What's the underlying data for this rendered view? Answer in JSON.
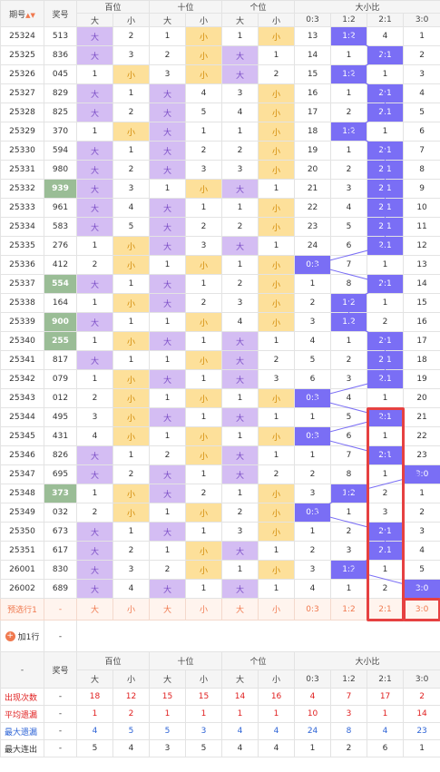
{
  "header": {
    "qh": "期号",
    "num": "奖号",
    "groups": [
      "百位",
      "十位",
      "个位",
      "大小比"
    ],
    "sub": [
      "大",
      "小",
      "大",
      "小",
      "大",
      "小",
      "0:3",
      "1:2",
      "2:1",
      "3:0"
    ]
  },
  "rows": [
    {
      "qh": "25324",
      "num": "513",
      "hit": false,
      "h": "d",
      "hv": "2",
      "t": "x",
      "tv": "1",
      "g": "x",
      "gv": "1",
      "r": 1,
      "rv": [
        "13",
        "",
        "4",
        "1"
      ]
    },
    {
      "qh": "25325",
      "num": "836",
      "hit": false,
      "h": "d",
      "hv": "3",
      "t": "x",
      "tv": "2",
      "g": "d",
      "gv": "1",
      "r": 2,
      "rv": [
        "14",
        "1",
        "",
        "2"
      ]
    },
    {
      "qh": "25326",
      "num": "045",
      "hit": false,
      "h": "x",
      "hv": "1",
      "t": "x",
      "tv": "3",
      "g": "d",
      "gv": "2",
      "r": 1,
      "rv": [
        "15",
        "",
        "1",
        "3"
      ]
    },
    {
      "qh": "25327",
      "num": "829",
      "hit": false,
      "h": "d",
      "hv": "1",
      "t": "d",
      "tv": "4",
      "g": "x",
      "gv": "3",
      "r": 2,
      "rv": [
        "16",
        "1",
        "",
        "4"
      ]
    },
    {
      "qh": "25328",
      "num": "825",
      "hit": false,
      "h": "d",
      "hv": "2",
      "t": "d",
      "tv": "5",
      "g": "x",
      "gv": "4",
      "r": 2,
      "rv": [
        "17",
        "2",
        "",
        "5"
      ]
    },
    {
      "qh": "25329",
      "num": "370",
      "hit": false,
      "h": "x",
      "hv": "1",
      "t": "d",
      "tv": "1",
      "g": "x",
      "gv": "1",
      "r": 1,
      "rv": [
        "18",
        "",
        "1",
        "6"
      ]
    },
    {
      "qh": "25330",
      "num": "594",
      "hit": false,
      "h": "d",
      "hv": "1",
      "t": "d",
      "tv": "2",
      "g": "x",
      "gv": "2",
      "r": 2,
      "rv": [
        "19",
        "1",
        "",
        "7"
      ]
    },
    {
      "qh": "25331",
      "num": "980",
      "hit": false,
      "h": "d",
      "hv": "2",
      "t": "d",
      "tv": "3",
      "g": "x",
      "gv": "3",
      "r": 2,
      "rv": [
        "20",
        "2",
        "",
        "8"
      ]
    },
    {
      "qh": "25332",
      "num": "939",
      "hit": true,
      "h": "d",
      "hv": "3",
      "t": "x",
      "tv": "1",
      "g": "d",
      "gv": "1",
      "r": 2,
      "rv": [
        "21",
        "3",
        "",
        "9"
      ]
    },
    {
      "qh": "25333",
      "num": "961",
      "hit": false,
      "h": "d",
      "hv": "4",
      "t": "d",
      "tv": "1",
      "g": "x",
      "gv": "1",
      "r": 2,
      "rv": [
        "22",
        "4",
        "",
        "10"
      ]
    },
    {
      "qh": "25334",
      "num": "583",
      "hit": false,
      "h": "d",
      "hv": "5",
      "t": "d",
      "tv": "2",
      "g": "x",
      "gv": "2",
      "r": 2,
      "rv": [
        "23",
        "5",
        "",
        "11"
      ]
    },
    {
      "qh": "25335",
      "num": "276",
      "hit": false,
      "h": "x",
      "hv": "1",
      "t": "d",
      "tv": "3",
      "g": "d",
      "gv": "1",
      "r": 2,
      "rv": [
        "24",
        "6",
        "",
        "12"
      ]
    },
    {
      "qh": "25336",
      "num": "412",
      "hit": false,
      "h": "x",
      "hv": "2",
      "t": "x",
      "tv": "1",
      "g": "x",
      "gv": "1",
      "r": 0,
      "rv": [
        "",
        "7",
        "1",
        "13"
      ]
    },
    {
      "qh": "25337",
      "num": "554",
      "hit": true,
      "h": "d",
      "hv": "1",
      "t": "d",
      "tv": "1",
      "g": "x",
      "gv": "2",
      "r": 2,
      "rv": [
        "1",
        "8",
        "",
        "14"
      ]
    },
    {
      "qh": "25338",
      "num": "164",
      "hit": false,
      "h": "x",
      "hv": "1",
      "t": "d",
      "tv": "2",
      "g": "x",
      "gv": "3",
      "r": 1,
      "rv": [
        "2",
        "",
        "1",
        "15"
      ]
    },
    {
      "qh": "25339",
      "num": "900",
      "hit": true,
      "h": "d",
      "hv": "1",
      "t": "x",
      "tv": "1",
      "g": "x",
      "gv": "4",
      "r": 1,
      "rv": [
        "3",
        "",
        "2",
        "16"
      ]
    },
    {
      "qh": "25340",
      "num": "255",
      "hit": true,
      "h": "x",
      "hv": "1",
      "t": "d",
      "tv": "1",
      "g": "d",
      "gv": "1",
      "r": 2,
      "rv": [
        "4",
        "1",
        "",
        "17"
      ]
    },
    {
      "qh": "25341",
      "num": "817",
      "hit": false,
      "h": "d",
      "hv": "1",
      "t": "x",
      "tv": "1",
      "g": "d",
      "gv": "2",
      "r": 2,
      "rv": [
        "5",
        "2",
        "",
        "18"
      ]
    },
    {
      "qh": "25342",
      "num": "079",
      "hit": false,
      "h": "x",
      "hv": "1",
      "t": "d",
      "tv": "1",
      "g": "d",
      "gv": "3",
      "r": 2,
      "rv": [
        "6",
        "3",
        "",
        "19"
      ]
    },
    {
      "qh": "25343",
      "num": "012",
      "hit": false,
      "h": "x",
      "hv": "2",
      "t": "x",
      "tv": "1",
      "g": "x",
      "gv": "1",
      "r": 0,
      "rv": [
        "",
        "4",
        "1",
        "20"
      ]
    },
    {
      "qh": "25344",
      "num": "495",
      "hit": false,
      "h": "x",
      "hv": "3",
      "t": "d",
      "tv": "1",
      "g": "d",
      "gv": "1",
      "r": 2,
      "rv": [
        "1",
        "5",
        "",
        "21"
      ]
    },
    {
      "qh": "25345",
      "num": "431",
      "hit": false,
      "h": "x",
      "hv": "4",
      "t": "x",
      "tv": "1",
      "g": "x",
      "gv": "1",
      "r": 0,
      "rv": [
        "",
        "6",
        "1",
        "22"
      ]
    },
    {
      "qh": "25346",
      "num": "826",
      "hit": false,
      "h": "d",
      "hv": "1",
      "t": "x",
      "tv": "2",
      "g": "d",
      "gv": "1",
      "r": 2,
      "rv": [
        "1",
        "7",
        "",
        "23"
      ]
    },
    {
      "qh": "25347",
      "num": "695",
      "hit": false,
      "h": "d",
      "hv": "2",
      "t": "d",
      "tv": "1",
      "g": "d",
      "gv": "2",
      "r": 3,
      "rv": [
        "2",
        "8",
        "1",
        ""
      ]
    },
    {
      "qh": "25348",
      "num": "373",
      "hit": true,
      "h": "x",
      "hv": "1",
      "t": "d",
      "tv": "2",
      "g": "x",
      "gv": "1",
      "r": 1,
      "rv": [
        "3",
        "",
        "2",
        "1"
      ]
    },
    {
      "qh": "25349",
      "num": "032",
      "hit": false,
      "h": "x",
      "hv": "2",
      "t": "x",
      "tv": "1",
      "g": "x",
      "gv": "2",
      "r": 0,
      "rv": [
        "",
        "1",
        "3",
        "2"
      ]
    },
    {
      "qh": "25350",
      "num": "673",
      "hit": false,
      "h": "d",
      "hv": "1",
      "t": "d",
      "tv": "1",
      "g": "x",
      "gv": "3",
      "r": 2,
      "rv": [
        "1",
        "2",
        "",
        "3"
      ]
    },
    {
      "qh": "25351",
      "num": "617",
      "hit": false,
      "h": "d",
      "hv": "2",
      "t": "x",
      "tv": "1",
      "g": "d",
      "gv": "1",
      "r": 2,
      "rv": [
        "2",
        "3",
        "",
        "4"
      ]
    },
    {
      "qh": "26001",
      "num": "830",
      "hit": false,
      "h": "d",
      "hv": "3",
      "t": "x",
      "tv": "2",
      "g": "x",
      "gv": "1",
      "r": 1,
      "rv": [
        "3",
        "",
        "1",
        "5"
      ]
    },
    {
      "qh": "26002",
      "num": "689",
      "hit": false,
      "h": "d",
      "hv": "4",
      "t": "d",
      "tv": "1",
      "g": "d",
      "gv": "1",
      "r": 3,
      "rv": [
        "4",
        "1",
        "2",
        ""
      ]
    }
  ],
  "ratio_labels": [
    "0:3",
    "1:2",
    "2:1",
    "3:0"
  ],
  "big_label": "大",
  "small_label": "小",
  "preselect": {
    "label": "预选行1",
    "dash": "-",
    "vals": [
      "大",
      "小",
      "大",
      "小",
      "大",
      "小",
      "0:3",
      "1:2",
      "2:1",
      "3:0"
    ]
  },
  "add_row": {
    "label": "加1行",
    "dash": "-"
  },
  "stats": {
    "dash": "-",
    "rows": [
      {
        "label": "出现次数",
        "cls": "c-red",
        "vals": [
          "18",
          "12",
          "15",
          "15",
          "14",
          "16",
          "4",
          "7",
          "17",
          "2"
        ]
      },
      {
        "label": "平均遗漏",
        "cls": "c-red",
        "vals": [
          "1",
          "2",
          "1",
          "1",
          "1",
          "1",
          "10",
          "3",
          "1",
          "14"
        ]
      },
      {
        "label": "最大遗漏",
        "cls": "c-blue",
        "vals": [
          "4",
          "5",
          "5",
          "3",
          "4",
          "4",
          "24",
          "8",
          "4",
          "23"
        ]
      },
      {
        "label": "最大连出",
        "cls": "c-dark",
        "vals": [
          "5",
          "4",
          "3",
          "5",
          "4",
          "4",
          "1",
          "2",
          "6",
          "1"
        ]
      }
    ]
  },
  "colors": {
    "big": "#d4bdf3",
    "small": "#fde09a",
    "ratio": "#7a6ef5",
    "hit": "#9abd96",
    "highlight": "#e64141"
  }
}
